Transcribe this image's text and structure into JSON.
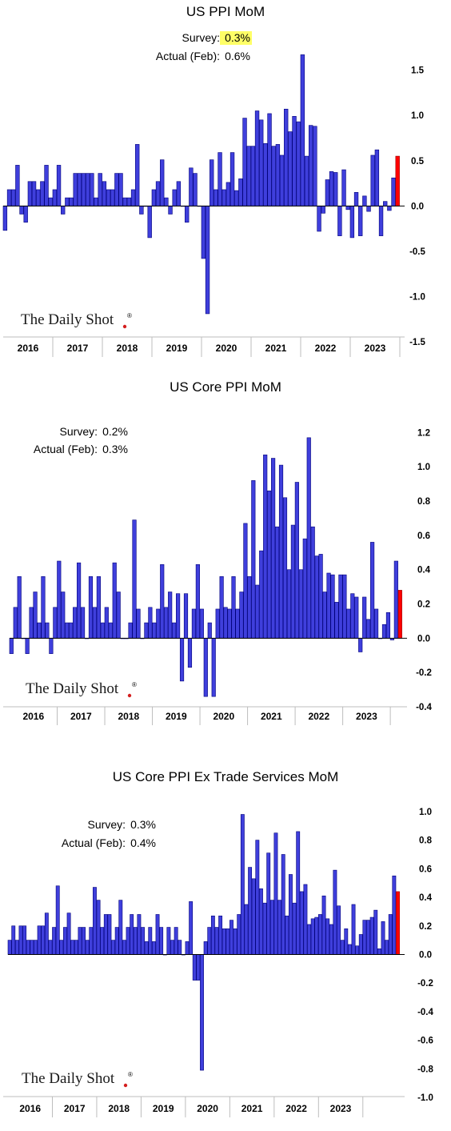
{
  "brand": {
    "logo_text": "The Daily Shot",
    "logo_mark": "®"
  },
  "colors": {
    "bar": "#3f3fdc",
    "bar_stroke": "#00007a",
    "latest_bar": "#ff0000",
    "highlight": "#ffff66",
    "panel_border": "#9a9a9a"
  },
  "chart_data": [
    {
      "type": "bar",
      "title": "US PPI MoM",
      "survey_label": "Survey:",
      "survey_value": "0.3%",
      "actual_label": "Actual (Feb):",
      "actual_value": "0.6%",
      "ylim": [
        -1.5,
        1.7
      ],
      "yticks": [
        "1.5",
        "1.0",
        "0.5",
        "0.0",
        "-0.5",
        "-1.0",
        "-1.5"
      ],
      "ytick_values": [
        1.5,
        1.0,
        0.5,
        0.0,
        -0.5,
        -1.0,
        -1.5
      ],
      "years": [
        "2016",
        "2017",
        "2018",
        "2019",
        "2020",
        "2021",
        "2022",
        "2023"
      ],
      "start_month_offset": 0,
      "highlight_last": true,
      "values": [
        -0.27,
        0.18,
        0.18,
        0.45,
        -0.09,
        -0.18,
        0.27,
        0.27,
        0.18,
        0.27,
        0.45,
        0.09,
        0.18,
        0.45,
        -0.09,
        0.09,
        0.09,
        0.36,
        0.36,
        0.36,
        0.36,
        0.36,
        0.09,
        0.36,
        0.27,
        0.18,
        0.18,
        0.36,
        0.36,
        0.09,
        0.09,
        0.18,
        0.68,
        -0.09,
        0.0,
        -0.35,
        0.18,
        0.27,
        0.51,
        0.09,
        -0.09,
        0.18,
        0.27,
        0.0,
        -0.18,
        0.42,
        0.36,
        0.0,
        -0.58,
        -1.19,
        0.51,
        0.18,
        0.59,
        0.18,
        0.26,
        0.59,
        0.17,
        0.3,
        0.97,
        0.66,
        0.66,
        1.05,
        0.95,
        0.69,
        1.02,
        0.66,
        0.68,
        0.56,
        1.07,
        0.82,
        0.99,
        0.93,
        1.67,
        0.55,
        0.89,
        0.88,
        -0.28,
        -0.08,
        0.29,
        0.38,
        0.37,
        -0.33,
        0.4,
        -0.04,
        -0.35,
        0.15,
        -0.33,
        0.11,
        -0.06,
        0.56,
        0.62,
        -0.33,
        0.05,
        -0.05,
        0.31,
        0.55
      ]
    },
    {
      "type": "bar",
      "title": "US Core PPI MoM",
      "survey_label": "Survey:",
      "survey_value": "0.2%",
      "actual_label": "Actual (Feb):",
      "actual_value": "0.3%",
      "ylim": [
        -0.4,
        1.3
      ],
      "yticks": [
        "1.2",
        "1.0",
        "0.8",
        "0.6",
        "0.4",
        "0.2",
        "0.0",
        "-0.2",
        "-0.4"
      ],
      "ytick_values": [
        1.2,
        1.0,
        0.8,
        0.6,
        0.4,
        0.2,
        0.0,
        -0.2,
        -0.4
      ],
      "years": [
        "2016",
        "2017",
        "2018",
        "2019",
        "2020",
        "2021",
        "2022",
        "2023"
      ],
      "start_month_offset": 0,
      "highlight_last": false,
      "values": [
        -0.09,
        0.18,
        0.36,
        0.0,
        -0.09,
        0.18,
        0.27,
        0.09,
        0.36,
        0.09,
        -0.09,
        0.18,
        0.45,
        0.27,
        0.09,
        0.09,
        0.18,
        0.44,
        0.18,
        0.0,
        0.36,
        0.18,
        0.36,
        0.09,
        0.18,
        0.09,
        0.44,
        0.27,
        0.0,
        0.0,
        0.09,
        0.69,
        0.17,
        0.0,
        0.09,
        0.18,
        0.09,
        0.17,
        0.43,
        0.18,
        0.27,
        0.09,
        0.26,
        -0.25,
        0.26,
        -0.17,
        0.17,
        0.43,
        0.17,
        -0.34,
        0.09,
        -0.34,
        0.17,
        0.36,
        0.18,
        0.17,
        0.36,
        0.17,
        0.27,
        0.67,
        0.36,
        0.92,
        0.31,
        0.51,
        1.07,
        0.86,
        1.05,
        0.65,
        1.01,
        0.82,
        0.4,
        0.66,
        0.91,
        0.4,
        0.58,
        1.17,
        0.65,
        0.48,
        0.49,
        0.27,
        0.38,
        0.37,
        0.21,
        0.37,
        0.37,
        0.17,
        0.26,
        0.24,
        -0.08,
        0.24,
        0.11,
        0.56,
        0.17,
        0.0,
        0.08,
        0.15,
        -0.01,
        0.45,
        0.28
      ]
    },
    {
      "type": "bar",
      "title": "US Core PPI Ex Trade Services MoM",
      "survey_label": "Survey:",
      "survey_value": "0.3%",
      "actual_label": "Actual (Feb):",
      "actual_value": "0.4%",
      "ylim": [
        -1.0,
        1.05
      ],
      "yticks": [
        "1.0",
        "0.8",
        "0.6",
        "0.4",
        "0.2",
        "0.0",
        "-0.2",
        "-0.4",
        "-0.6",
        "-0.8",
        "-1.0"
      ],
      "ytick_values": [
        1.0,
        0.8,
        0.6,
        0.4,
        0.2,
        0.0,
        -0.2,
        -0.4,
        -0.6,
        -0.8,
        -1.0
      ],
      "years": [
        "2016",
        "2017",
        "2018",
        "2019",
        "2020",
        "2021",
        "2022",
        "2023"
      ],
      "start_month_offset": 0,
      "highlight_last": false,
      "values": [
        0.1,
        0.2,
        0.1,
        0.2,
        0.2,
        0.1,
        0.1,
        0.1,
        0.2,
        0.2,
        0.29,
        0.1,
        0.19,
        0.48,
        0.1,
        0.19,
        0.29,
        0.1,
        0.1,
        0.19,
        0.19,
        0.1,
        0.19,
        0.47,
        0.38,
        0.19,
        0.28,
        0.28,
        0.1,
        0.19,
        0.38,
        0.1,
        0.19,
        0.28,
        0.19,
        0.28,
        0.19,
        0.09,
        0.19,
        0.09,
        0.28,
        0.19,
        0.0,
        0.19,
        0.1,
        0.19,
        0.1,
        0.0,
        0.09,
        0.37,
        -0.18,
        -0.18,
        -0.81,
        0.09,
        0.19,
        0.27,
        0.19,
        0.27,
        0.18,
        0.18,
        0.24,
        0.18,
        0.28,
        0.98,
        0.35,
        0.61,
        0.53,
        0.8,
        0.46,
        0.36,
        0.71,
        0.38,
        0.85,
        0.38,
        0.7,
        0.27,
        0.56,
        0.36,
        0.86,
        0.44,
        0.49,
        0.21,
        0.25,
        0.26,
        0.28,
        0.41,
        0.25,
        0.21,
        0.59,
        0.34,
        0.1,
        0.18,
        0.07,
        0.35,
        0.06,
        0.14,
        0.24,
        0.24,
        0.26,
        0.31,
        0.04,
        0.23,
        0.1,
        0.28,
        0.55,
        0.44
      ]
    }
  ]
}
